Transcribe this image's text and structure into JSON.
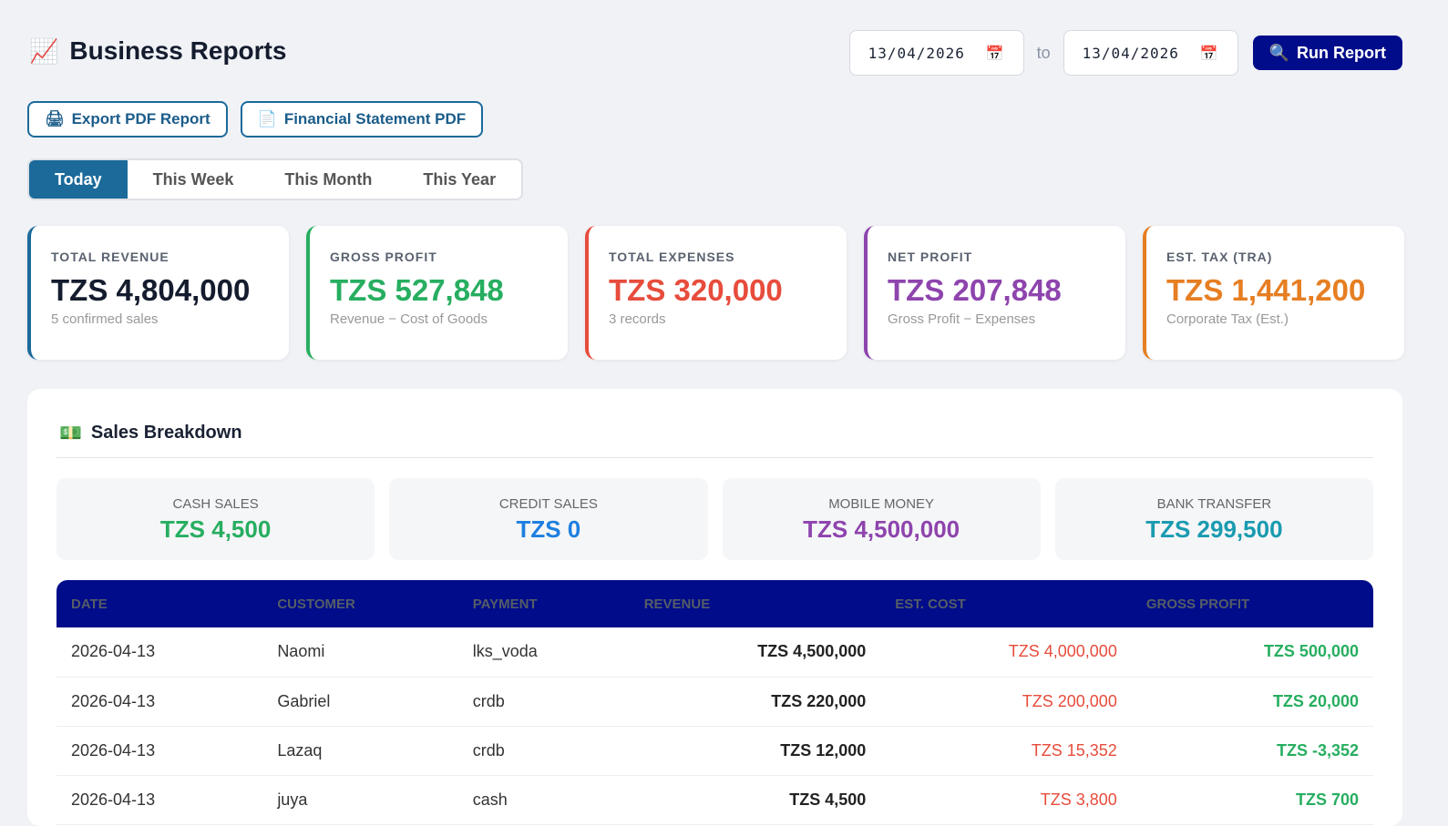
{
  "header": {
    "icon": "chart-increasing-icon",
    "title": "Business Reports",
    "date_from": "13/04/2026",
    "to_label": "to",
    "date_to": "13/04/2026",
    "run_label": "Run Report"
  },
  "actions": {
    "export_pdf": "Export PDF Report",
    "financial_pdf": "Financial Statement PDF"
  },
  "tabs": [
    {
      "label": "Today",
      "active": true
    },
    {
      "label": "This Week"
    },
    {
      "label": "This Month"
    },
    {
      "label": "This Year"
    }
  ],
  "cards": [
    {
      "label": "TOTAL REVENUE",
      "value": "TZS 4,804,000",
      "sub": "5 confirmed sales",
      "color": "#141c2e",
      "border": "#1b6a9a"
    },
    {
      "label": "GROSS PROFIT",
      "value": "TZS 527,848",
      "sub": "Revenue − Cost of Goods",
      "color": "#27ae60",
      "border": "#27ae60"
    },
    {
      "label": "TOTAL EXPENSES",
      "value": "TZS 320,000",
      "sub": "3 records",
      "color": "#e74c3c",
      "border": "#e74c3c"
    },
    {
      "label": "NET PROFIT",
      "value": "TZS 207,848",
      "sub": "Gross Profit − Expenses",
      "color": "#8e44ad",
      "border": "#8e44ad"
    },
    {
      "label": "EST. TAX (TRA)",
      "value": "TZS 1,441,200",
      "sub": "Corporate Tax (Est.)",
      "color": "#e67e22",
      "border": "#e67e22"
    }
  ],
  "breakdown": {
    "title": "Sales Breakdown",
    "methods": [
      {
        "label": "CASH SALES",
        "value": "TZS 4,500",
        "color": "#27ae60"
      },
      {
        "label": "CREDIT SALES",
        "value": "TZS 0",
        "color": "#1e7fe0"
      },
      {
        "label": "MOBILE MONEY",
        "value": "TZS 4,500,000",
        "color": "#8e44ad"
      },
      {
        "label": "BANK TRANSFER",
        "value": "TZS 299,500",
        "color": "#1a9bb0"
      }
    ]
  },
  "table": {
    "columns": [
      "DATE",
      "CUSTOMER",
      "PAYMENT",
      "REVENUE",
      "EST. COST",
      "GROSS PROFIT"
    ],
    "rows": [
      [
        "2026-04-13",
        "Naomi",
        "lks_voda",
        "TZS 4,500,000",
        "TZS 4,000,000",
        "TZS 500,000"
      ],
      [
        "2026-04-13",
        "Gabriel",
        "crdb",
        "TZS 220,000",
        "TZS 200,000",
        "TZS 20,000"
      ],
      [
        "2026-04-13",
        "Lazaq",
        "crdb",
        "TZS 12,000",
        "TZS 15,352",
        "TZS -3,352"
      ],
      [
        "2026-04-13",
        "juya",
        "cash",
        "TZS 4,500",
        "TZS 3,800",
        "TZS 700"
      ]
    ]
  }
}
